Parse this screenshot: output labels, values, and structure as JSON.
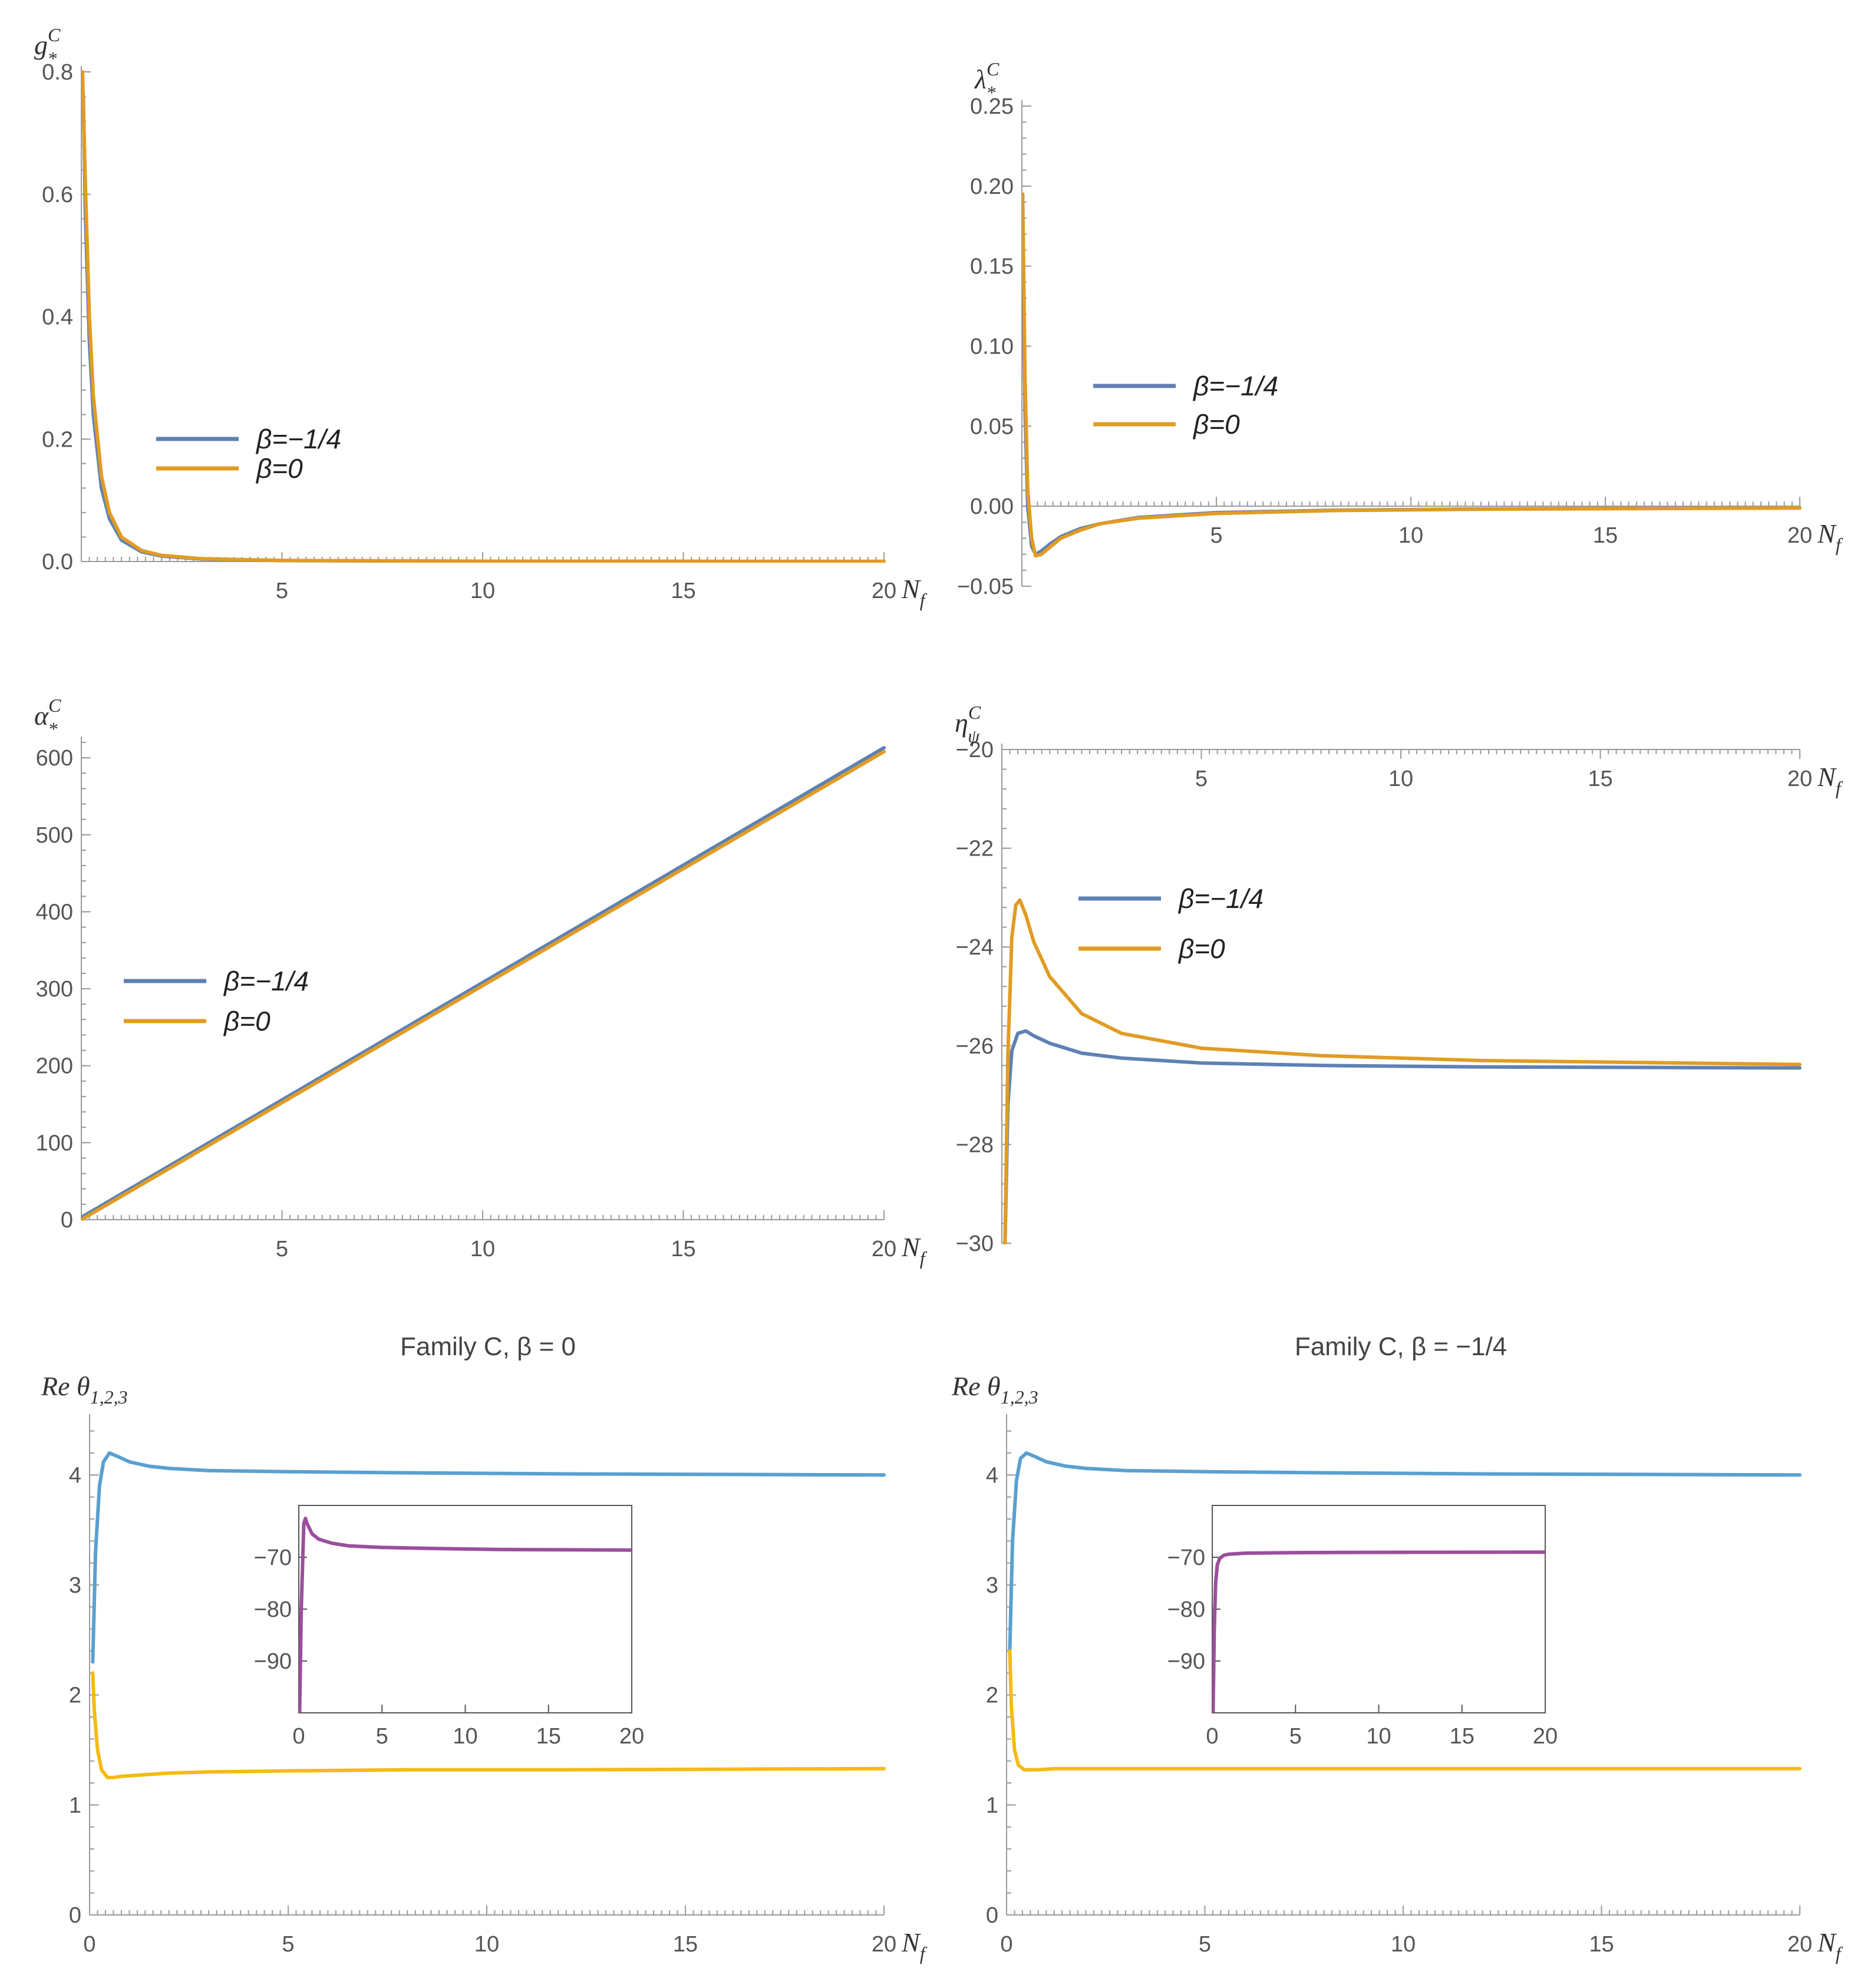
{
  "chart_data": [
    {
      "id": "g",
      "type": "line",
      "ylabel": "g",
      "ylabel_sup": "C",
      "ylabel_sub": "*",
      "xlabel": "N",
      "xlabel_sub": "f",
      "xlim": [
        0,
        20
      ],
      "ylim": [
        0,
        0.8
      ],
      "xticks": [
        5,
        10,
        15,
        20
      ],
      "yticks": [
        0.0,
        0.2,
        0.4,
        0.6,
        0.8
      ],
      "ytick_labels": [
        "0.0",
        "0.2",
        "0.4",
        "0.6",
        "0.8"
      ],
      "x_axis_at": 0,
      "legend": "center-left",
      "series": [
        {
          "name": "β=−1/4",
          "color": "#5e81b5",
          "x": [
            0.05,
            0.1,
            0.2,
            0.3,
            0.5,
            0.7,
            1,
            1.5,
            2,
            3,
            5,
            10,
            15,
            20
          ],
          "y": [
            0.76,
            0.57,
            0.36,
            0.24,
            0.12,
            0.07,
            0.035,
            0.016,
            0.009,
            0.004,
            0.0015,
            0.0004,
            0.0002,
            0.0001
          ]
        },
        {
          "name": "β=0",
          "color": "#e19c24",
          "x": [
            0.03,
            0.1,
            0.2,
            0.3,
            0.5,
            0.7,
            1,
            1.5,
            2,
            3,
            5,
            10,
            15,
            20
          ],
          "y": [
            0.8,
            0.62,
            0.4,
            0.27,
            0.14,
            0.08,
            0.04,
            0.018,
            0.01,
            0.0045,
            0.0017,
            0.0005,
            0.0002,
            0.0001
          ]
        }
      ]
    },
    {
      "id": "lambda",
      "type": "line",
      "ylabel": "λ",
      "ylabel_sup": "C",
      "ylabel_sub": "*",
      "xlabel": "N",
      "xlabel_sub": "f",
      "xlim": [
        0,
        20
      ],
      "ylim": [
        -0.05,
        0.25
      ],
      "xticks": [
        5,
        10,
        15,
        20
      ],
      "yticks": [
        -0.05,
        0.0,
        0.05,
        0.1,
        0.15,
        0.2,
        0.25
      ],
      "ytick_labels": [
        "−0.05",
        "0.00",
        "0.05",
        "0.10",
        "0.15",
        "0.20",
        "0.25"
      ],
      "x_axis_at": 0,
      "legend": "center",
      "series": [
        {
          "name": "β=−1/4",
          "color": "#5e81b5",
          "x": [
            0.02,
            0.08,
            0.15,
            0.25,
            0.35,
            0.5,
            0.7,
            1,
            1.5,
            2,
            3,
            5,
            8,
            12,
            20
          ],
          "y": [
            0.17,
            0.06,
            0.0,
            -0.025,
            -0.03,
            -0.028,
            -0.024,
            -0.019,
            -0.014,
            -0.011,
            -0.007,
            -0.004,
            -0.0025,
            -0.0017,
            -0.001
          ]
        },
        {
          "name": "β=0",
          "color": "#e19c24",
          "x": [
            0.02,
            0.08,
            0.15,
            0.25,
            0.35,
            0.5,
            0.7,
            1,
            1.5,
            2,
            3,
            5,
            8,
            12,
            20
          ],
          "y": [
            0.195,
            0.08,
            0.01,
            -0.02,
            -0.031,
            -0.03,
            -0.026,
            -0.02,
            -0.015,
            -0.011,
            -0.0075,
            -0.0045,
            -0.0027,
            -0.0018,
            -0.0011
          ]
        }
      ]
    },
    {
      "id": "alpha",
      "type": "line",
      "ylabel": "α",
      "ylabel_sup": "C",
      "ylabel_sub": "*",
      "xlabel": "N",
      "xlabel_sub": "f",
      "xlim": [
        0,
        20
      ],
      "ylim": [
        0,
        620
      ],
      "xticks": [
        5,
        10,
        15,
        20
      ],
      "yticks": [
        0,
        100,
        200,
        300,
        400,
        500,
        600
      ],
      "ytick_labels": [
        "0",
        "100",
        "200",
        "300",
        "400",
        "500",
        "600"
      ],
      "x_axis_at": 0,
      "legend": "center-left",
      "series": [
        {
          "name": "β=−1/4",
          "color": "#5e81b5",
          "x": [
            0,
            20
          ],
          "y": [
            3,
            613
          ]
        },
        {
          "name": "β=0",
          "color": "#e19c24",
          "x": [
            0,
            20
          ],
          "y": [
            0,
            608
          ]
        }
      ]
    },
    {
      "id": "eta",
      "type": "line",
      "ylabel": "η",
      "ylabel_sup": "C",
      "ylabel_sub": "ψ",
      "xlabel": "N",
      "xlabel_sub": "f",
      "xlim": [
        0,
        20
      ],
      "ylim": [
        -30,
        -20
      ],
      "xticks": [
        5,
        10,
        15,
        20
      ],
      "yticks": [
        -30,
        -28,
        -26,
        -24,
        -22,
        -20
      ],
      "ytick_labels": [
        "−30",
        "−28",
        "−26",
        "−24",
        "−22",
        "−20"
      ],
      "x_axis_at": -20,
      "legend": "upper-center-left",
      "series": [
        {
          "name": "β=−1/4",
          "color": "#5e81b5",
          "x": [
            0.08,
            0.15,
            0.25,
            0.4,
            0.6,
            0.8,
            1.2,
            2,
            3,
            5,
            8,
            12,
            20
          ],
          "y": [
            -30,
            -27.2,
            -26.1,
            -25.75,
            -25.7,
            -25.8,
            -25.95,
            -26.15,
            -26.25,
            -26.35,
            -26.4,
            -26.43,
            -26.45
          ]
        },
        {
          "name": "β=0",
          "color": "#e19c24",
          "x": [
            0.08,
            0.15,
            0.25,
            0.35,
            0.45,
            0.6,
            0.8,
            1.2,
            2,
            3,
            5,
            8,
            12,
            20
          ],
          "y": [
            -30,
            -26.2,
            -23.8,
            -23.15,
            -23.05,
            -23.35,
            -23.9,
            -24.6,
            -25.35,
            -25.75,
            -26.05,
            -26.2,
            -26.3,
            -26.38
          ]
        }
      ]
    },
    {
      "id": "theta_beta0",
      "type": "line",
      "title": "Family C, β = 0",
      "ylabel": "Re θ",
      "ylabel_sub": "1,2,3",
      "xlabel": "N",
      "xlabel_sub": "f",
      "xlim": [
        0,
        20
      ],
      "ylim": [
        0,
        4.5
      ],
      "xticks": [
        0,
        5,
        10,
        15,
        20
      ],
      "yticks": [
        0,
        1,
        2,
        3,
        4
      ],
      "ytick_labels": [
        "0",
        "1",
        "2",
        "3",
        "4"
      ],
      "x_axis_at": 0,
      "series": [
        {
          "color": "#5aa0d0",
          "x": [
            0.08,
            0.15,
            0.25,
            0.35,
            0.5,
            0.7,
            1,
            1.5,
            2,
            3,
            5,
            8,
            12,
            20
          ],
          "y": [
            2.3,
            3.3,
            3.9,
            4.12,
            4.2,
            4.17,
            4.12,
            4.08,
            4.06,
            4.04,
            4.03,
            4.02,
            4.01,
            4.0
          ]
        },
        {
          "color": "#f4bb12",
          "x": [
            0.08,
            0.12,
            0.2,
            0.3,
            0.45,
            0.6,
            0.8,
            1.2,
            2,
            3,
            5,
            8,
            12,
            20
          ],
          "y": [
            2.2,
            1.85,
            1.5,
            1.32,
            1.25,
            1.25,
            1.26,
            1.27,
            1.29,
            1.3,
            1.31,
            1.32,
            1.32,
            1.33
          ]
        }
      ],
      "inset": {
        "xlim": [
          0,
          20
        ],
        "ylim": [
          -100,
          -60
        ],
        "xticks": [
          0,
          5,
          10,
          15,
          20
        ],
        "yticks": [
          -70,
          -80,
          -90
        ],
        "ytick_labels": [
          "−70",
          "−80",
          "−90"
        ],
        "series": [
          {
            "color": "#9b4f9c",
            "x": [
              0.05,
              0.15,
              0.3,
              0.4,
              0.5,
              0.8,
              1.2,
              2,
              3,
              5,
              8,
              12,
              20
            ],
            "y": [
              -100,
              -80,
              -63.5,
              -62.5,
              -63.5,
              -65.5,
              -66.5,
              -67.3,
              -67.8,
              -68.1,
              -68.3,
              -68.5,
              -68.6
            ]
          }
        ]
      }
    },
    {
      "id": "theta_betam14",
      "type": "line",
      "title": "Family C, β = −1/4",
      "ylabel": "Re θ",
      "ylabel_sub": "1,2,3",
      "xlabel": "N",
      "xlabel_sub": "f",
      "xlim": [
        0,
        20
      ],
      "ylim": [
        0,
        4.5
      ],
      "xticks": [
        0,
        5,
        10,
        15,
        20
      ],
      "yticks": [
        0,
        1,
        2,
        3,
        4
      ],
      "ytick_labels": [
        "0",
        "1",
        "2",
        "3",
        "4"
      ],
      "x_axis_at": 0,
      "series": [
        {
          "color": "#5aa0d0",
          "x": [
            0.08,
            0.15,
            0.25,
            0.35,
            0.5,
            0.7,
            1,
            1.5,
            2,
            3,
            5,
            8,
            12,
            20
          ],
          "y": [
            2.4,
            3.4,
            3.95,
            4.15,
            4.2,
            4.17,
            4.12,
            4.08,
            4.06,
            4.04,
            4.03,
            4.02,
            4.01,
            4.0
          ]
        },
        {
          "color": "#f4bb12",
          "x": [
            0.08,
            0.12,
            0.2,
            0.3,
            0.45,
            0.6,
            0.8,
            1.2,
            2,
            3,
            5,
            8,
            12,
            20
          ],
          "y": [
            2.4,
            1.9,
            1.5,
            1.36,
            1.32,
            1.32,
            1.32,
            1.33,
            1.33,
            1.33,
            1.33,
            1.33,
            1.33,
            1.33
          ]
        }
      ],
      "inset": {
        "xlim": [
          0,
          20
        ],
        "ylim": [
          -100,
          -60
        ],
        "xticks": [
          0,
          5,
          10,
          15,
          20
        ],
        "yticks": [
          -70,
          -80,
          -90
        ],
        "ytick_labels": [
          "−70",
          "−80",
          "−90"
        ],
        "series": [
          {
            "color": "#9b4f9c",
            "x": [
              0.05,
              0.12,
              0.2,
              0.3,
              0.45,
              0.7,
              1,
              2,
              5,
              10,
              20
            ],
            "y": [
              -100,
              -84,
              -75,
              -71.5,
              -70.2,
              -69.6,
              -69.4,
              -69.2,
              -69.1,
              -69.05,
              -69.0
            ]
          }
        ]
      }
    }
  ]
}
